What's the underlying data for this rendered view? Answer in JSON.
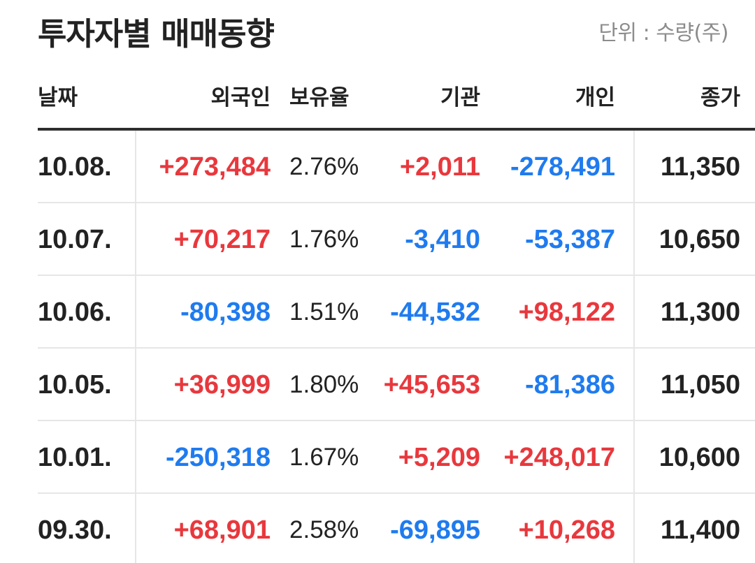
{
  "title": "투자자별 매매동향",
  "unit": "단위 : 수량(주)",
  "columns": {
    "date": "날짜",
    "foreign": "외국인",
    "ratio": "보유율",
    "institution": "기관",
    "individual": "개인",
    "close": "종가"
  },
  "colors": {
    "up": "#e8383d",
    "down": "#1f7bef",
    "text": "#222222"
  },
  "rows": [
    {
      "date": "10.08.",
      "foreign": "+273,484",
      "ratio": "2.76%",
      "institution": "+2,011",
      "individual": "-278,491",
      "close": "11,350"
    },
    {
      "date": "10.07.",
      "foreign": "+70,217",
      "ratio": "1.76%",
      "institution": "-3,410",
      "individual": "-53,387",
      "close": "10,650"
    },
    {
      "date": "10.06.",
      "foreign": "-80,398",
      "ratio": "1.51%",
      "institution": "-44,532",
      "individual": "+98,122",
      "close": "11,300"
    },
    {
      "date": "10.05.",
      "foreign": "+36,999",
      "ratio": "1.80%",
      "institution": "+45,653",
      "individual": "-81,386",
      "close": "11,050"
    },
    {
      "date": "10.01.",
      "foreign": "-250,318",
      "ratio": "1.67%",
      "institution": "+5,209",
      "individual": "+248,017",
      "close": "10,600"
    },
    {
      "date": "09.30.",
      "foreign": "+68,901",
      "ratio": "2.58%",
      "institution": "-69,895",
      "individual": "+10,268",
      "close": "11,400"
    }
  ]
}
